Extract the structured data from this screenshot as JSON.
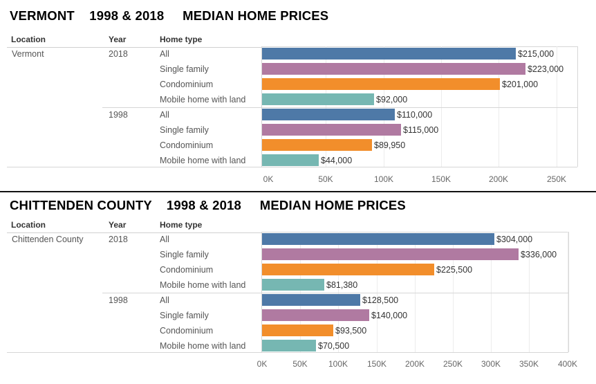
{
  "chart_data": [
    {
      "type": "bar",
      "title": "VERMONT    1998 & 2018     MEDIAN HOME PRICES",
      "headers": {
        "location": "Location",
        "year": "Year",
        "home_type": "Home type"
      },
      "location": "Vermont",
      "groups": [
        {
          "year": "2018",
          "rows": [
            {
              "home_type": "All",
              "value": 215000,
              "label": "$215,000"
            },
            {
              "home_type": "Single family",
              "value": 223000,
              "label": "$223,000"
            },
            {
              "home_type": "Condominium",
              "value": 201000,
              "label": "$201,000"
            },
            {
              "home_type": "Mobile home with land",
              "value": 92000,
              "label": "$92,000"
            }
          ]
        },
        {
          "year": "1998",
          "rows": [
            {
              "home_type": "All",
              "value": 110000,
              "label": "$110,000"
            },
            {
              "home_type": "Single family",
              "value": 115000,
              "label": "$115,000"
            },
            {
              "home_type": "Condominium",
              "value": 89950,
              "label": "$89,950"
            },
            {
              "home_type": "Mobile home with land",
              "value": 44000,
              "label": "$44,000"
            }
          ]
        }
      ],
      "xlim": [
        0,
        275000
      ],
      "ticks": [
        0,
        50000,
        100000,
        150000,
        200000,
        250000
      ],
      "tick_labels": [
        "0K",
        "50K",
        "100K",
        "150K",
        "200K",
        "250K"
      ]
    },
    {
      "type": "bar",
      "title": "CHITTENDEN COUNTY    1998 & 2018     MEDIAN HOME PRICES",
      "headers": {
        "location": "Location",
        "year": "Year",
        "home_type": "Home type"
      },
      "location": "Chittenden County",
      "groups": [
        {
          "year": "2018",
          "rows": [
            {
              "home_type": "All",
              "value": 304000,
              "label": "$304,000"
            },
            {
              "home_type": "Single family",
              "value": 336000,
              "label": "$336,000"
            },
            {
              "home_type": "Condominium",
              "value": 225500,
              "label": "$225,500"
            },
            {
              "home_type": "Mobile home with land",
              "value": 81380,
              "label": "$81,380"
            }
          ]
        },
        {
          "year": "1998",
          "rows": [
            {
              "home_type": "All",
              "value": 128500,
              "label": "$128,500"
            },
            {
              "home_type": "Single family",
              "value": 140000,
              "label": "$140,000"
            },
            {
              "home_type": "Condominium",
              "value": 93500,
              "label": "$93,500"
            },
            {
              "home_type": "Mobile home with land",
              "value": 70500,
              "label": "$70,500"
            }
          ]
        }
      ],
      "xlim": [
        0,
        400000
      ],
      "ticks": [
        0,
        50000,
        100000,
        150000,
        200000,
        250000,
        300000,
        350000,
        400000
      ],
      "tick_labels": [
        "0K",
        "50K",
        "100K",
        "150K",
        "200K",
        "250K",
        "300K",
        "350K",
        "400K"
      ]
    }
  ],
  "colors": {
    "All": "#4e79a7",
    "Single family": "#b07aa1",
    "Condominium": "#f28e2b",
    "Mobile home with land": "#76b7b2"
  }
}
